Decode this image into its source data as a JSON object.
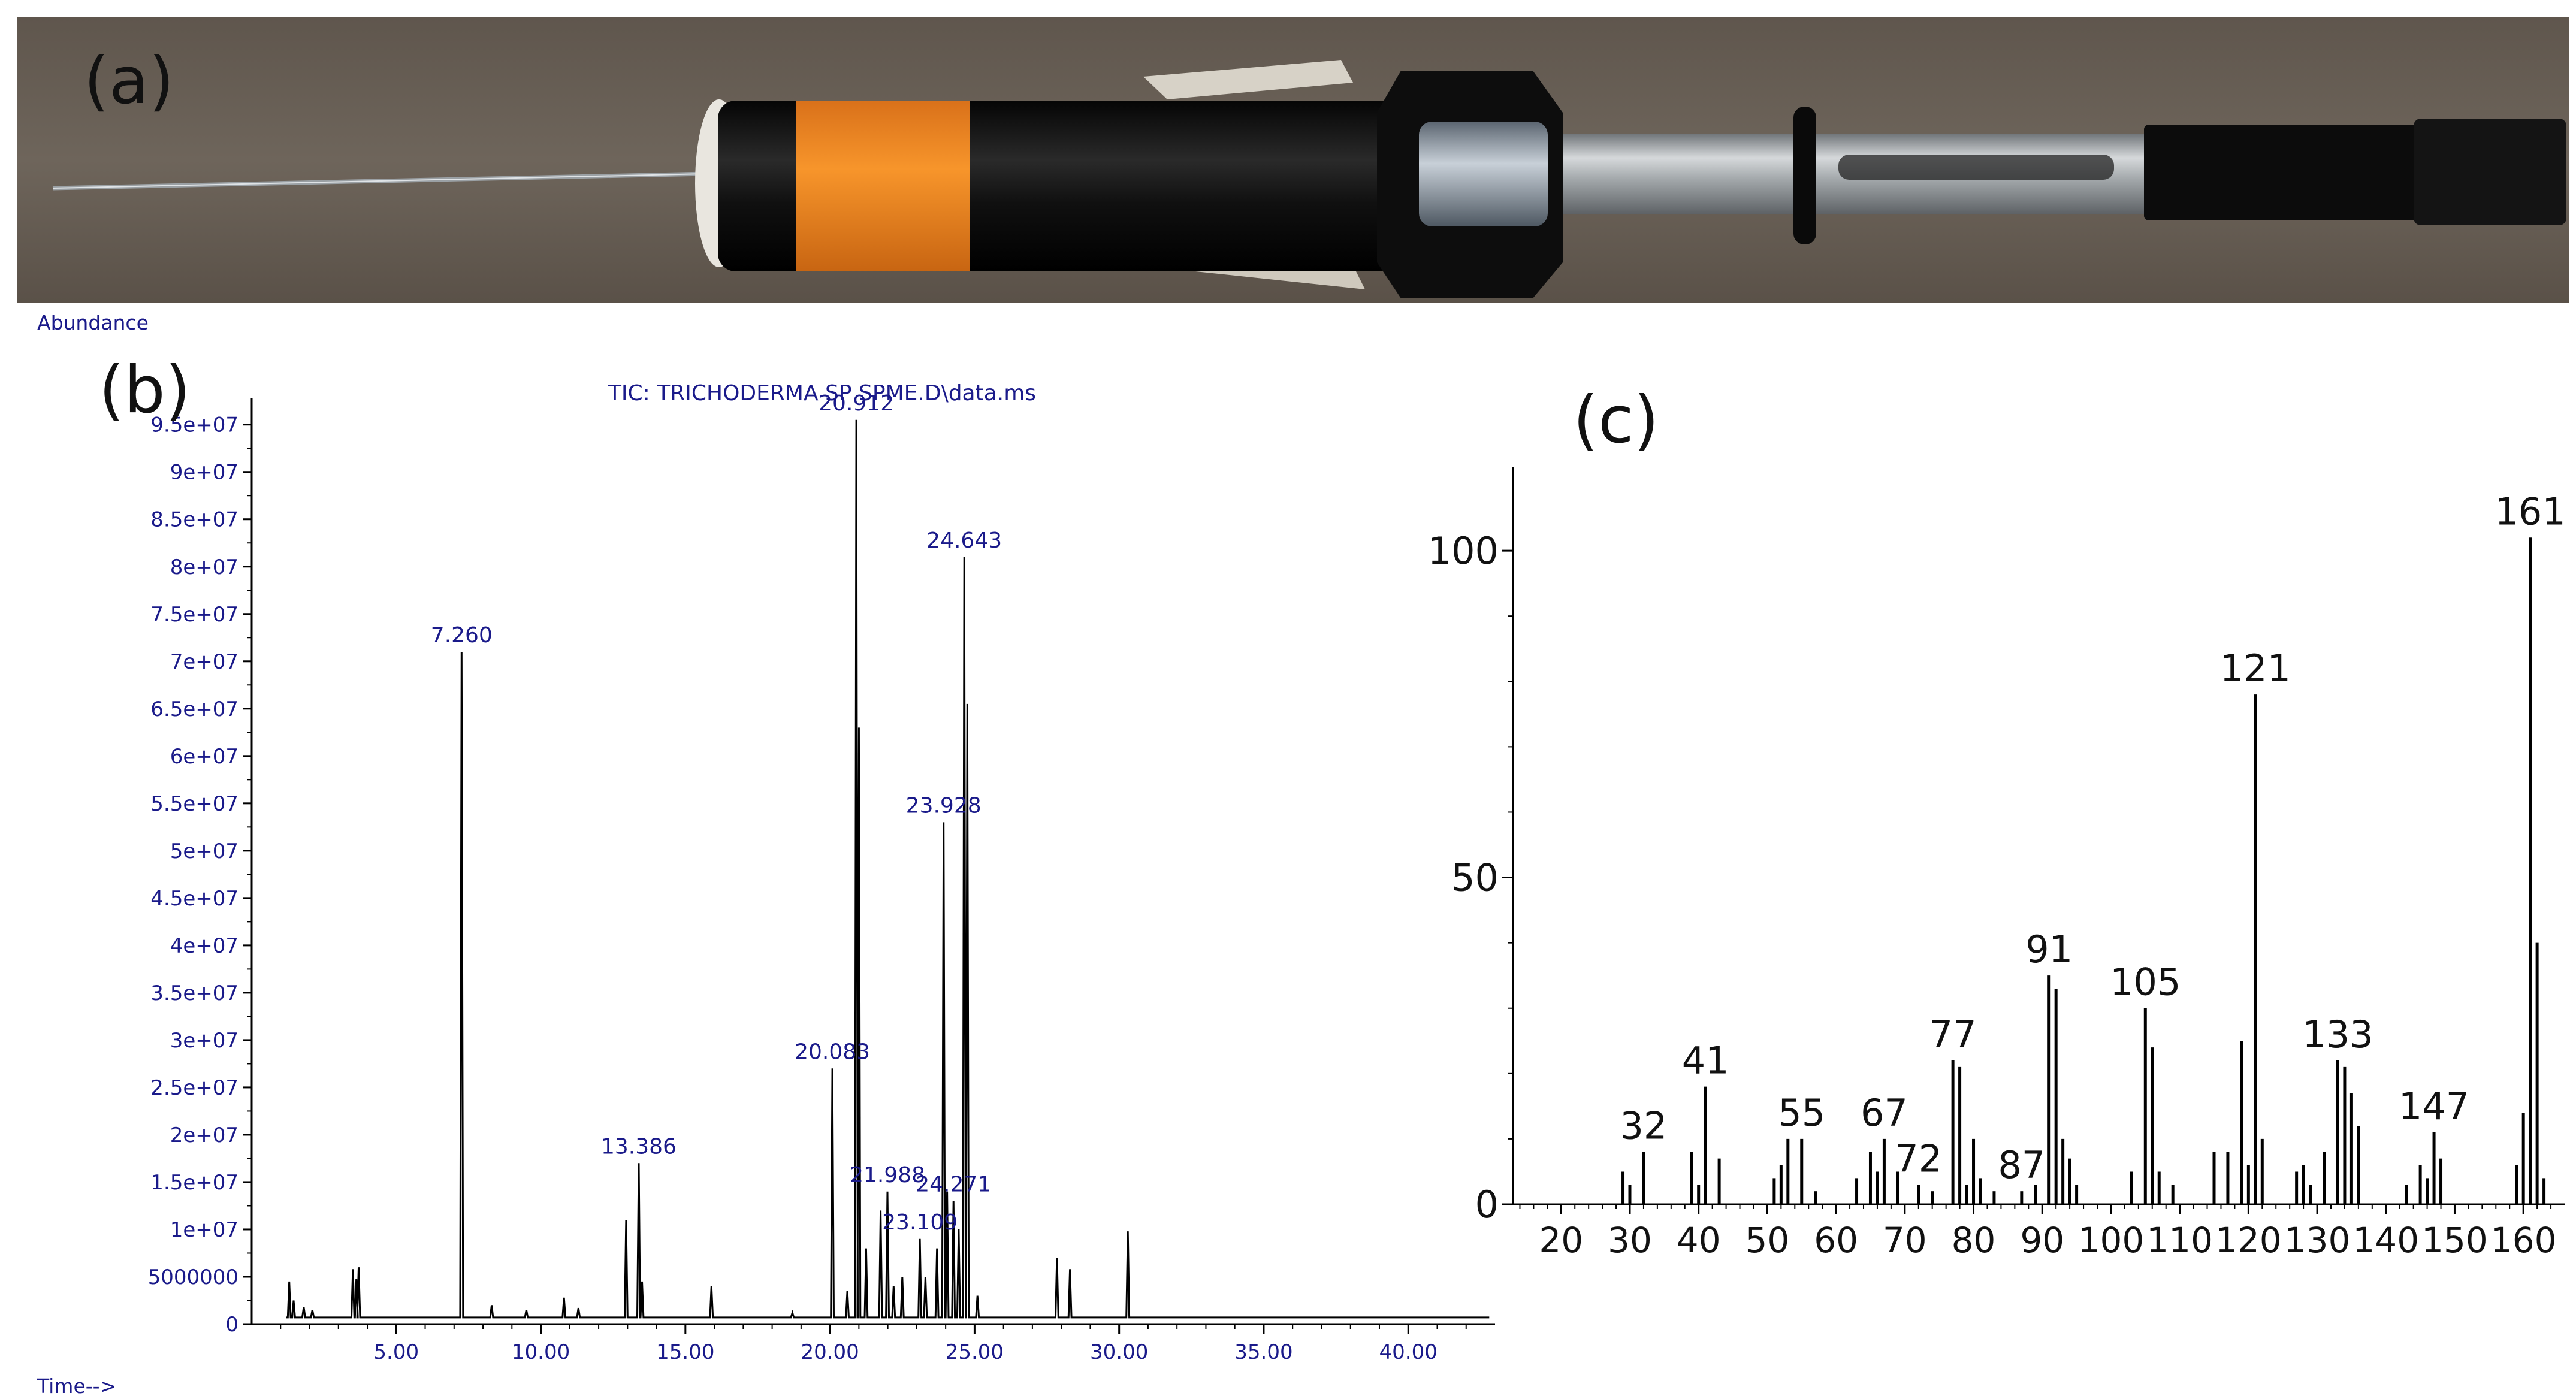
{
  "panels": {
    "a_label": "(a)",
    "b_label": "(b)",
    "c_label": "(c)"
  },
  "photo": {
    "subject": "SPME fiber holder",
    "colors": {
      "body": "#141414",
      "band": "#f58a1f",
      "steel": "#9ea3a6",
      "background": "#6b6157"
    }
  },
  "chart_data": [
    {
      "type": "line",
      "title": "TIC: TRICHODERMA SP SPME.D\\data.ms",
      "ylabel": "Abundance",
      "xlabel": "Time-->",
      "xlim": [
        0,
        43
      ],
      "ylim": [
        0,
        96500000
      ],
      "x_ticks": [
        5,
        10,
        15,
        20,
        25,
        30,
        35,
        40
      ],
      "x_tick_labels": [
        "5.00",
        "10.00",
        "15.00",
        "20.00",
        "25.00",
        "30.00",
        "35.00",
        "40.00"
      ],
      "y_ticks": [
        0,
        5000000,
        10000000,
        15000000,
        20000000,
        25000000,
        30000000,
        35000000,
        40000000,
        45000000,
        50000000,
        55000000,
        60000000,
        65000000,
        70000000,
        75000000,
        80000000,
        85000000,
        90000000,
        95000000
      ],
      "y_tick_labels": [
        "0",
        "5000000",
        "1e+07",
        "1.5e+07",
        "2e+07",
        "2.5e+07",
        "3e+07",
        "3.5e+07",
        "4e+07",
        "4.5e+07",
        "5e+07",
        "5.5e+07",
        "6e+07",
        "6.5e+07",
        "7e+07",
        "7.5e+07",
        "8e+07",
        "8.5e+07",
        "9e+07",
        "9.5e+07"
      ],
      "line_color": "#000000",
      "label_color": "#1a1a8a",
      "series": [
        {
          "points": [
            [
              1.3,
              4500000
            ],
            [
              1.45,
              2500000
            ],
            [
              1.8,
              1800000
            ],
            [
              2.1,
              1500000
            ],
            [
              3.5,
              5800000
            ],
            [
              3.62,
              4800000
            ],
            [
              3.7,
              6000000
            ],
            [
              7.26,
              71000000
            ],
            [
              8.3,
              2000000
            ],
            [
              9.5,
              1500000
            ],
            [
              10.8,
              2800000
            ],
            [
              11.3,
              1700000
            ],
            [
              12.95,
              11000000
            ],
            [
              13.386,
              17000000
            ],
            [
              13.5,
              4500000
            ],
            [
              15.9,
              4000000
            ],
            [
              18.7,
              1200000
            ],
            [
              20.083,
              27000000
            ],
            [
              20.6,
              3500000
            ],
            [
              20.912,
              95500000
            ],
            [
              21.0,
              63000000
            ],
            [
              21.25,
              8000000
            ],
            [
              21.75,
              12000000
            ],
            [
              21.988,
              14000000
            ],
            [
              22.2,
              4000000
            ],
            [
              22.5,
              5000000
            ],
            [
              23.109,
              9000000
            ],
            [
              23.3,
              5000000
            ],
            [
              23.7,
              8000000
            ],
            [
              23.928,
              53000000
            ],
            [
              24.05,
              14000000
            ],
            [
              24.271,
              13000000
            ],
            [
              24.45,
              10000000
            ],
            [
              24.643,
              81000000
            ],
            [
              24.75,
              65500000
            ],
            [
              25.1,
              3000000
            ],
            [
              27.85,
              7000000
            ],
            [
              28.3,
              5800000
            ],
            [
              30.3,
              9800000
            ]
          ]
        }
      ],
      "peak_labels": [
        "7.260",
        "13.386",
        "20.083",
        "20.912",
        "21.988",
        "23.109",
        "23.928",
        "24.271",
        "24.643"
      ],
      "peak_label_values": [
        7.26,
        13.386,
        20.083,
        20.912,
        21.988,
        23.109,
        23.928,
        24.271,
        24.643
      ]
    },
    {
      "type": "bar",
      "xlim": [
        13,
        166
      ],
      "ylim": [
        0,
        110
      ],
      "x_ticks": [
        20,
        30,
        40,
        50,
        60,
        70,
        80,
        90,
        100,
        110,
        120,
        130,
        140,
        150,
        160
      ],
      "x_tick_labels": [
        "20",
        "30",
        "40",
        "50",
        "60",
        "70",
        "80",
        "90",
        "100",
        "110",
        "120",
        "130",
        "140",
        "150",
        "160"
      ],
      "y_ticks": [
        0,
        50,
        100
      ],
      "y_tick_labels": [
        "0",
        "50",
        "100"
      ],
      "bar_color": "#000000",
      "x": [
        29,
        30,
        32,
        39,
        40,
        41,
        43,
        51,
        52,
        53,
        55,
        57,
        63,
        65,
        66,
        67,
        69,
        72,
        74,
        77,
        78,
        79,
        80,
        81,
        83,
        87,
        89,
        91,
        92,
        93,
        94,
        95,
        103,
        105,
        106,
        107,
        109,
        115,
        117,
        119,
        120,
        121,
        122,
        127,
        128,
        129,
        131,
        133,
        134,
        135,
        136,
        143,
        145,
        146,
        147,
        148,
        159,
        160,
        161,
        162,
        163
      ],
      "values": [
        5,
        3,
        8,
        8,
        3,
        18,
        7,
        4,
        6,
        10,
        10,
        2,
        4,
        8,
        5,
        10,
        5,
        3,
        2,
        22,
        21,
        3,
        10,
        4,
        2,
        2,
        3,
        35,
        33,
        10,
        7,
        3,
        5,
        30,
        24,
        5,
        3,
        8,
        8,
        25,
        6,
        78,
        10,
        5,
        6,
        3,
        8,
        22,
        21,
        17,
        12,
        3,
        6,
        4,
        11,
        7,
        6,
        14,
        102,
        40,
        4
      ],
      "peak_labels": [
        "32",
        "41",
        "55",
        "67",
        "72",
        "77",
        "87",
        "91",
        "105",
        "121",
        "133",
        "147",
        "161"
      ],
      "peak_label_x": [
        32,
        41,
        55,
        67,
        72,
        77,
        87,
        91,
        105,
        121,
        133,
        147,
        161
      ],
      "peak_label_y": [
        8,
        18,
        10,
        10,
        3,
        22,
        2,
        35,
        30,
        78,
        22,
        11,
        102
      ]
    }
  ]
}
